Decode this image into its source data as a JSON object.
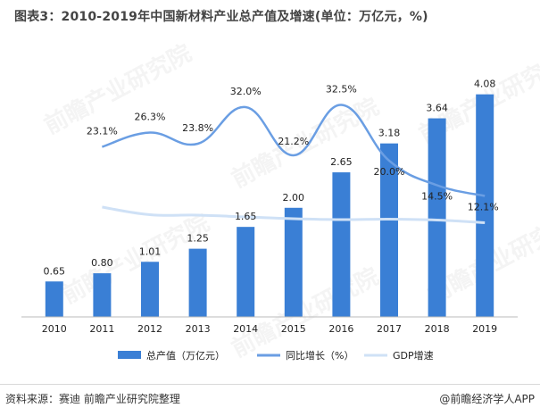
{
  "title": "图表3：2010-2019年中国新材料产业总产值及增速(单位：万亿元，%)",
  "source": "资料来源：赛迪 前瞻产业研究院整理",
  "credit": "@前瞻经济学人APP",
  "watermark": "前瞻产业研究院",
  "colors": {
    "bar": "#3a7fd5",
    "growth_line": "#6a9ee3",
    "gdp_line": "#cfe1f6",
    "axis": "#bbbbbb",
    "label": "#222222"
  },
  "chart_data": {
    "type": "bar",
    "categories": [
      "2010",
      "2011",
      "2012",
      "2013",
      "2014",
      "2015",
      "2016",
      "2017",
      "2018",
      "2019"
    ],
    "series": [
      {
        "name": "总产值（万亿元）",
        "kind": "bar",
        "values": [
          0.65,
          0.8,
          1.01,
          1.25,
          1.65,
          2.0,
          2.65,
          3.18,
          3.64,
          4.08
        ],
        "labels": [
          "0.65",
          "0.80",
          "1.01",
          "1.25",
          "1.65",
          "2.00",
          "2.65",
          "3.18",
          "3.64",
          "4.08"
        ]
      },
      {
        "name": "同比增长（%）",
        "kind": "line",
        "values": [
          null,
          23.1,
          26.3,
          23.8,
          32.0,
          21.2,
          32.5,
          20.0,
          14.5,
          12.1
        ],
        "labels": [
          null,
          "23.1%",
          "26.3%",
          "23.8%",
          "32.0%",
          "21.2%",
          "32.5%",
          "20.0%",
          "14.5%",
          "12.1%"
        ]
      },
      {
        "name": "GDP增速",
        "kind": "line",
        "values": [
          null,
          9.6,
          7.9,
          7.8,
          7.4,
          7.0,
          6.8,
          6.9,
          6.7,
          6.1
        ]
      }
    ],
    "bar_ylim": [
      0,
      4.5
    ],
    "line_ylim": [
      -15,
      40
    ],
    "legend_position": "bottom"
  }
}
